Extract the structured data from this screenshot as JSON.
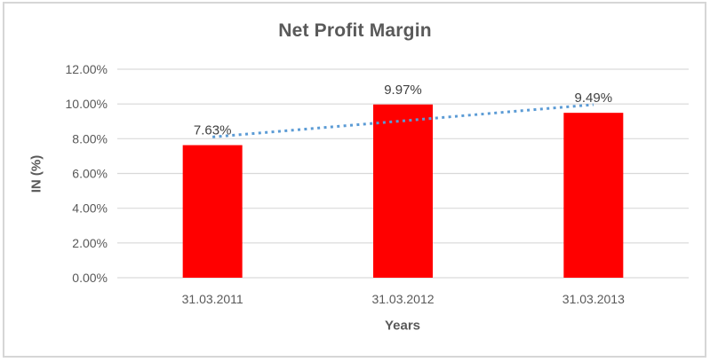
{
  "chart_data": {
    "type": "bar",
    "title": "Net Profit Margin",
    "categories": [
      "31.03.2011",
      "31.03.2012",
      "31.03.2013"
    ],
    "values": [
      7.63,
      9.97,
      9.49
    ],
    "data_labels": [
      "7.63%",
      "9.97%",
      "9.49%"
    ],
    "xlabel": "Years",
    "ylabel": "IN (%)",
    "ylim": [
      0,
      12
    ],
    "ytick_step": 2,
    "ytick_labels": [
      "0.00%",
      "2.00%",
      "4.00%",
      "6.00%",
      "8.00%",
      "10.00%",
      "12.00%"
    ],
    "grid": true,
    "legend": "none",
    "trendline": {
      "type": "linear",
      "style": "dotted"
    },
    "colors": {
      "bar": "#FF0000",
      "trendline": "#5B9BD5",
      "gridline": "#D9D9D9",
      "axis_line": "#D9D9D9",
      "axis_text": "#595959",
      "data_label_text": "#404040",
      "title_text": "#595959",
      "frame_border": "#D6D6D6",
      "background": "#FFFFFF"
    }
  }
}
